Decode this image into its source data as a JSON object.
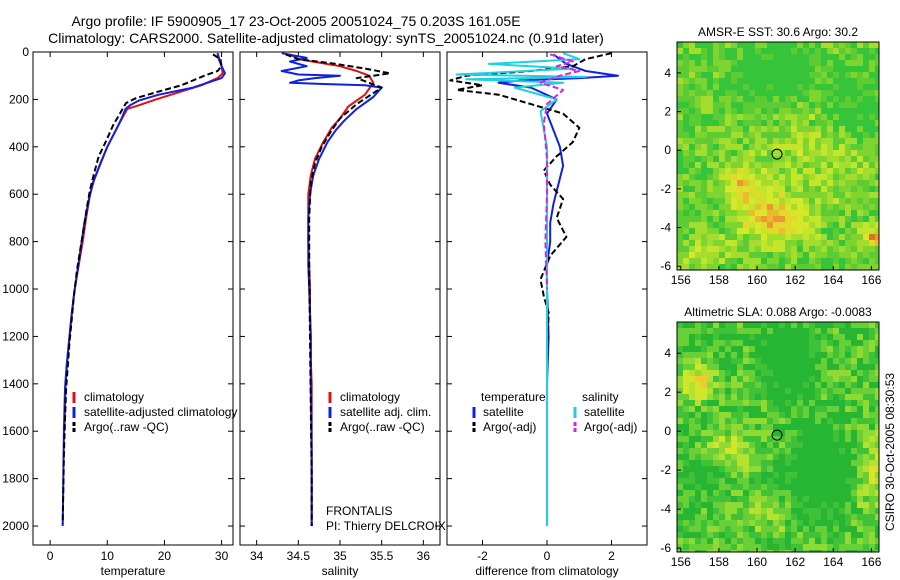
{
  "title": {
    "line1": "Argo profile: IF 5900905_17 23-Oct-2005 20051024_75 0.203S 161.05E",
    "line2": "Climatology: CARS2000. Satellite-adjusted climatology: synTS_20051024.nc (0.91d later)"
  },
  "side_label": "CSIRO 30-Oct-2005 08:30:53",
  "chart_data": [
    {
      "type": "line",
      "panel": "temperature",
      "xlabel": "temperature",
      "xlim": [
        -3,
        32
      ],
      "xticks": [
        0,
        10,
        20,
        30
      ],
      "ylim": [
        0,
        2080
      ],
      "yticks": [
        0,
        200,
        400,
        600,
        800,
        1000,
        1200,
        1400,
        1600,
        1800,
        2000
      ],
      "y_reversed": true,
      "legend": [
        "climatology",
        "satellite-adjusted climatology",
        "Argo(..raw -QC)"
      ],
      "series": [
        {
          "name": "climatology",
          "color": "#e01010",
          "dash": false,
          "x": [
            29.3,
            29.5,
            30.0,
            30.2,
            29.3,
            26.5,
            22.5,
            18.5,
            15.5,
            13.5,
            12.8,
            11.7,
            10.0,
            9.0,
            7.7,
            7.0,
            6.3,
            5.7,
            5.0,
            4.3,
            3.8,
            3.4,
            3.0,
            2.7,
            2.5
          ],
          "y": [
            5,
            30,
            60,
            90,
            110,
            140,
            170,
            200,
            225,
            240,
            270,
            320,
            400,
            460,
            540,
            600,
            700,
            800,
            900,
            1000,
            1100,
            1200,
            1300,
            1400,
            1600
          ]
        },
        {
          "name": "satellite-adjusted climatology",
          "color": "#1020e0",
          "dash": false,
          "x": [
            29.3,
            29.6,
            30.0,
            30.6,
            30.0,
            25.0,
            19.0,
            15.5,
            14.0,
            13.2,
            12.5,
            11.5,
            10.0,
            8.8,
            7.5,
            6.8,
            6.0,
            5.4,
            4.8,
            4.2,
            3.7,
            3.3,
            2.9,
            2.6,
            2.4,
            2.3,
            2.2
          ],
          "y": [
            5,
            30,
            60,
            90,
            110,
            150,
            180,
            205,
            225,
            240,
            280,
            330,
            400,
            470,
            550,
            620,
            720,
            820,
            920,
            1020,
            1120,
            1220,
            1320,
            1420,
            1600,
            1800,
            2000
          ]
        },
        {
          "name": "Argo(..raw -QC)",
          "color": "#000000",
          "dash": true,
          "x": [
            28.5,
            29.8,
            30.0,
            29.3,
            27.0,
            23.0,
            18.5,
            15.0,
            13.3,
            12.8,
            12.2,
            11.0,
            9.7,
            8.5,
            7.6,
            7.0,
            6.4,
            5.9,
            5.3,
            4.7,
            4.2,
            3.8,
            3.4,
            3.1,
            2.8,
            2.6,
            2.4,
            2.3,
            2.2
          ],
          "y": [
            10,
            30,
            60,
            80,
            100,
            140,
            170,
            195,
            215,
            235,
            260,
            310,
            380,
            440,
            520,
            580,
            660,
            740,
            830,
            920,
            1020,
            1120,
            1220,
            1320,
            1420,
            1550,
            1700,
            1850,
            1990
          ]
        }
      ]
    },
    {
      "type": "line",
      "panel": "salinity",
      "xlabel": "salinity",
      "xlim": [
        33.8,
        36.2
      ],
      "xticks": [
        34,
        34.5,
        35,
        35.5,
        36
      ],
      "ylim": [
        0,
        2080
      ],
      "y_reversed": true,
      "legend": [
        "climatology",
        "satellite adj. clim.",
        "Argo(..raw -QC)"
      ],
      "series": [
        {
          "name": "climatology",
          "color": "#e01010",
          "dash": false,
          "x": [
            34.4,
            34.5,
            35.0,
            35.2,
            35.35,
            35.4,
            35.3,
            35.1,
            35.0,
            34.9,
            34.8,
            34.7,
            34.65,
            34.62,
            34.62,
            34.62,
            34.63,
            34.64,
            34.64,
            34.65,
            34.65,
            34.66,
            34.66,
            34.66,
            34.66
          ],
          "y": [
            10,
            30,
            60,
            80,
            100,
            130,
            180,
            230,
            280,
            320,
            380,
            450,
            520,
            600,
            700,
            800,
            900,
            1000,
            1100,
            1200,
            1300,
            1400,
            1600,
            1800,
            2000
          ]
        },
        {
          "name": "satellite adj. clim.",
          "color": "#1020e0",
          "dash": false,
          "x": [
            34.3,
            34.6,
            34.4,
            34.6,
            34.3,
            34.5,
            35.0,
            34.7,
            34.5,
            34.4,
            34.8,
            35.3,
            35.5,
            35.4,
            35.2,
            35.05,
            34.95,
            34.85,
            34.75,
            34.68,
            34.64,
            34.62,
            34.62,
            34.62,
            34.63,
            34.64,
            34.65,
            34.65,
            34.66,
            34.66
          ],
          "y": [
            5,
            25,
            40,
            60,
            80,
            95,
            100,
            110,
            120,
            130,
            135,
            140,
            150,
            190,
            240,
            290,
            330,
            380,
            450,
            520,
            600,
            700,
            800,
            900,
            1000,
            1100,
            1200,
            1400,
            1700,
            2000
          ]
        },
        {
          "name": "Argo(..raw -QC)",
          "color": "#000000",
          "dash": true,
          "x": [
            34.35,
            34.5,
            34.95,
            35.3,
            35.6,
            35.2,
            35.5,
            35.2,
            35.0,
            34.9,
            34.78,
            34.7,
            34.65,
            34.63,
            34.63,
            34.64,
            34.65,
            34.66,
            34.66
          ],
          "y": [
            10,
            30,
            50,
            70,
            90,
            110,
            150,
            220,
            280,
            330,
            400,
            470,
            550,
            700,
            900,
            1200,
            1500,
            1800,
            2000
          ]
        }
      ]
    },
    {
      "type": "line",
      "panel": "difference",
      "xlabel": "difference from climatology",
      "xlim": [
        -3.1,
        3.1
      ],
      "xticks": [
        -2,
        0,
        2
      ],
      "ylim": [
        0,
        2080
      ],
      "y_reversed": true,
      "legend": {
        "temperature_header": "temperature",
        "salinity_header": "salinity",
        "entries": [
          "satellite",
          "Argo(-adj)",
          "satellite",
          "Argo(-adj)"
        ]
      },
      "series": [
        {
          "name": "satellite",
          "group": "temperature",
          "color": "#1020e0",
          "dash": false,
          "x": [
            0.2,
            0.6,
            1.2,
            2.2,
            1.0,
            -0.8,
            -1.5,
            -0.5,
            0.3,
            0.0,
            0.2,
            0.4,
            0.5,
            0.35,
            0.2,
            0.1,
            0.1,
            0.0,
            0.0,
            0.05,
            0.0,
            0.0,
            0.0
          ],
          "y": [
            10,
            50,
            80,
            100,
            110,
            120,
            130,
            150,
            200,
            260,
            330,
            400,
            480,
            560,
            640,
            720,
            800,
            900,
            1000,
            1200,
            1400,
            1700,
            2000
          ]
        },
        {
          "name": "Argo(-adj)",
          "group": "temperature",
          "color": "#000000",
          "dash": true,
          "x": [
            2.0,
            1.2,
            0.8,
            -0.5,
            -2.5,
            -3.0,
            -2.0,
            -2.8,
            -1.5,
            -0.5,
            0.5,
            1.0,
            0.8,
            0.3,
            -0.1,
            0.1,
            0.5,
            0.3,
            0.6,
            0.1,
            -0.2,
            -0.1,
            0.05,
            0.0,
            0.0,
            0.0
          ],
          "y": [
            5,
            30,
            60,
            80,
            100,
            120,
            140,
            160,
            180,
            220,
            260,
            320,
            380,
            440,
            500,
            560,
            620,
            700,
            780,
            860,
            960,
            1030,
            1100,
            1300,
            1600,
            1990
          ]
        },
        {
          "name": "satellite",
          "group": "salinity",
          "color": "#20d0e0",
          "dash": false,
          "x": [
            0.5,
            1.0,
            -1.8,
            0.8,
            -2.8,
            1.2,
            -2.5,
            0.5,
            -1.0,
            0.3,
            -0.2,
            0.0,
            0.0,
            0.0,
            0.0,
            0.0,
            0.0,
            0.0,
            0.0
          ],
          "y": [
            5,
            30,
            50,
            70,
            95,
            105,
            115,
            130,
            150,
            200,
            250,
            400,
            600,
            800,
            1000,
            1200,
            1500,
            1800,
            2000
          ]
        },
        {
          "name": "Argo(-adj)",
          "group": "salinity",
          "color": "#e020e0",
          "dash": true,
          "x": [
            0.1,
            0.8,
            0.3,
            1.0,
            0.4,
            -0.2,
            0.5,
            0.0,
            -0.1,
            0.0,
            0.0,
            -0.05,
            0.0
          ],
          "y": [
            10,
            40,
            60,
            80,
            100,
            130,
            160,
            220,
            300,
            450,
            600,
            800,
            1000
          ]
        }
      ]
    },
    {
      "type": "heatmap",
      "panel": "sst_map",
      "title": "AMSR-E SST: 30.6 Argo: 30.2",
      "xlim": [
        155.8,
        166.4
      ],
      "xticks": [
        156,
        158,
        160,
        162,
        164,
        166
      ],
      "ylim": [
        -6.2,
        5.6
      ],
      "yticks": [
        -6,
        -4,
        -2,
        0,
        2,
        4
      ],
      "marker": {
        "lon": 161.05,
        "lat": -0.203
      }
    },
    {
      "type": "heatmap",
      "panel": "sla_map",
      "title": "Altimetric SLA: 0.088 Argo: -0.0083",
      "xlim": [
        155.8,
        166.4
      ],
      "xticks": [
        156,
        158,
        160,
        162,
        164,
        166
      ],
      "ylim": [
        -6.2,
        5.6
      ],
      "yticks": [
        -6,
        -4,
        -2,
        0,
        2,
        4
      ],
      "marker": {
        "lon": 161.05,
        "lat": -0.203
      }
    }
  ]
}
